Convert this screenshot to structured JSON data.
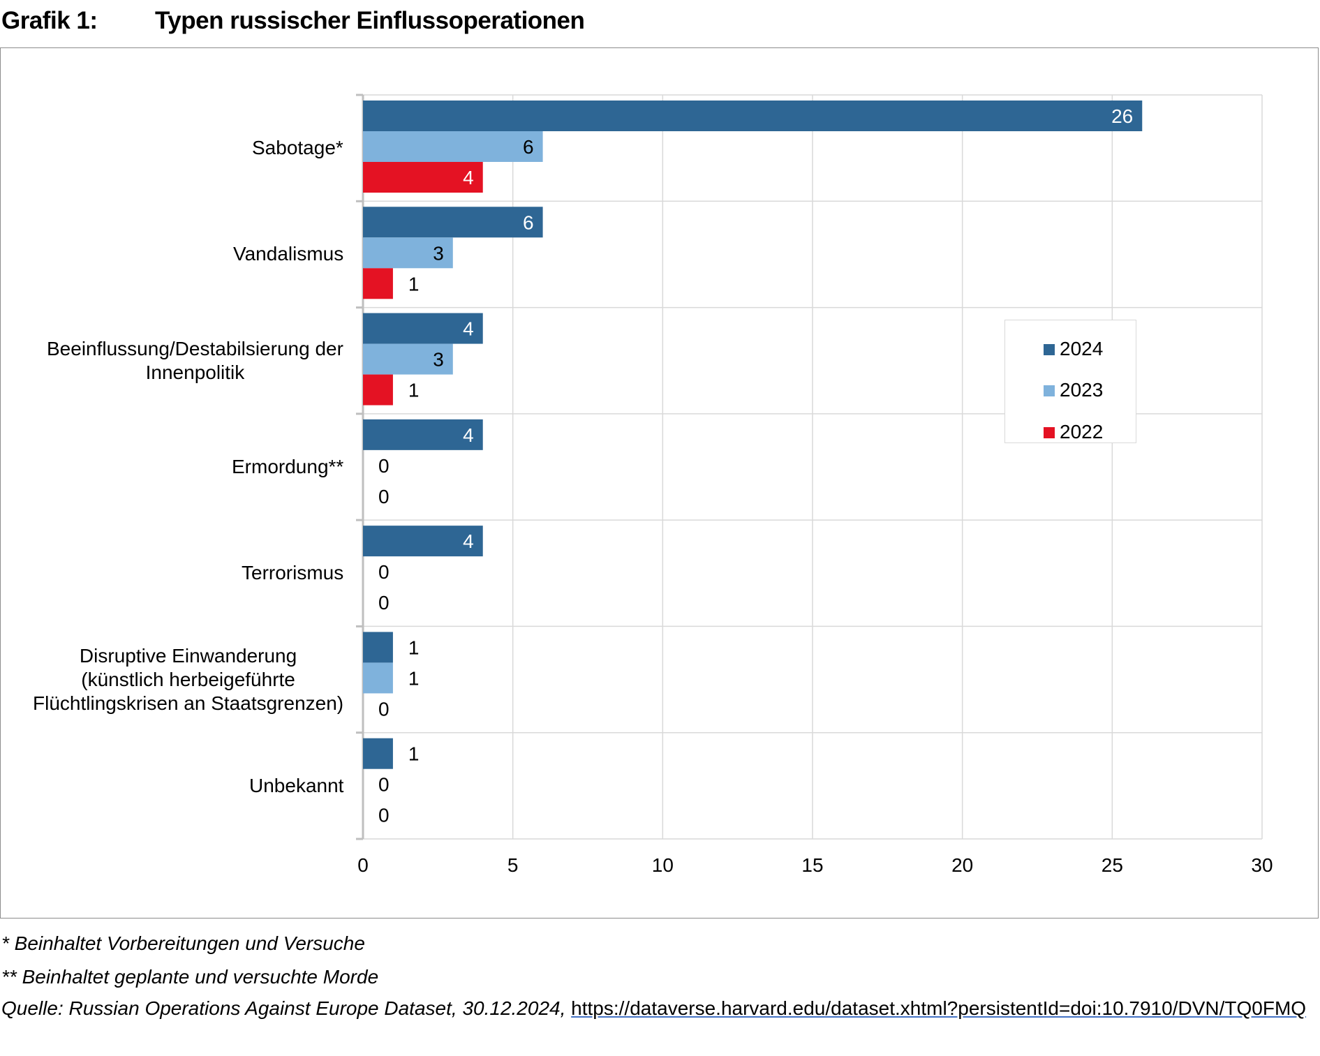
{
  "header": {
    "label": "Grafik 1:",
    "title": "Typen russischer Einflussoperationen"
  },
  "chart_data": {
    "type": "bar",
    "orientation": "horizontal",
    "title": "Typen russischer Einflussoperationen",
    "categories": [
      [
        "Sabotage*"
      ],
      [
        "Vandalismus"
      ],
      [
        "Beeinflussung/Destabilsierung der",
        "Innenpolitik"
      ],
      [
        "Ermordung**"
      ],
      [
        "Terrorismus"
      ],
      [
        "Disruptive Einwanderung",
        "(künstlich herbeigeführte",
        "Flüchtlingskrisen an Staatsgrenzen)"
      ],
      [
        "Unbekannt"
      ]
    ],
    "series": [
      {
        "name": "2024",
        "color": "#2e6694",
        "values": [
          26,
          6,
          4,
          4,
          4,
          1,
          1
        ]
      },
      {
        "name": "2023",
        "color": "#7fb2dc",
        "values": [
          6,
          3,
          3,
          0,
          0,
          1,
          0
        ]
      },
      {
        "name": "2022",
        "color": "#e41223",
        "values": [
          4,
          1,
          1,
          0,
          0,
          0,
          0
        ]
      }
    ],
    "xlim": [
      0,
      30
    ],
    "xticks": [
      "0",
      "5",
      "10",
      "15",
      "20",
      "25",
      "30"
    ],
    "grid": true,
    "legend_position": "right"
  },
  "footnotes": {
    "note1": "* Beinhaltet Vorbereitungen und Versuche",
    "note2": "** Beinhaltet geplante und versuchte Morde",
    "source_prefix": "Quelle:",
    "source_dataset": "Russian Operations Against Europe Dataset",
    "source_date": ", 30.12.2024, ",
    "source_link": "https://dataverse.harvard.edu/dataset.xhtml?persistentId=doi:10.7910/DVN/TQ0FMQ"
  }
}
